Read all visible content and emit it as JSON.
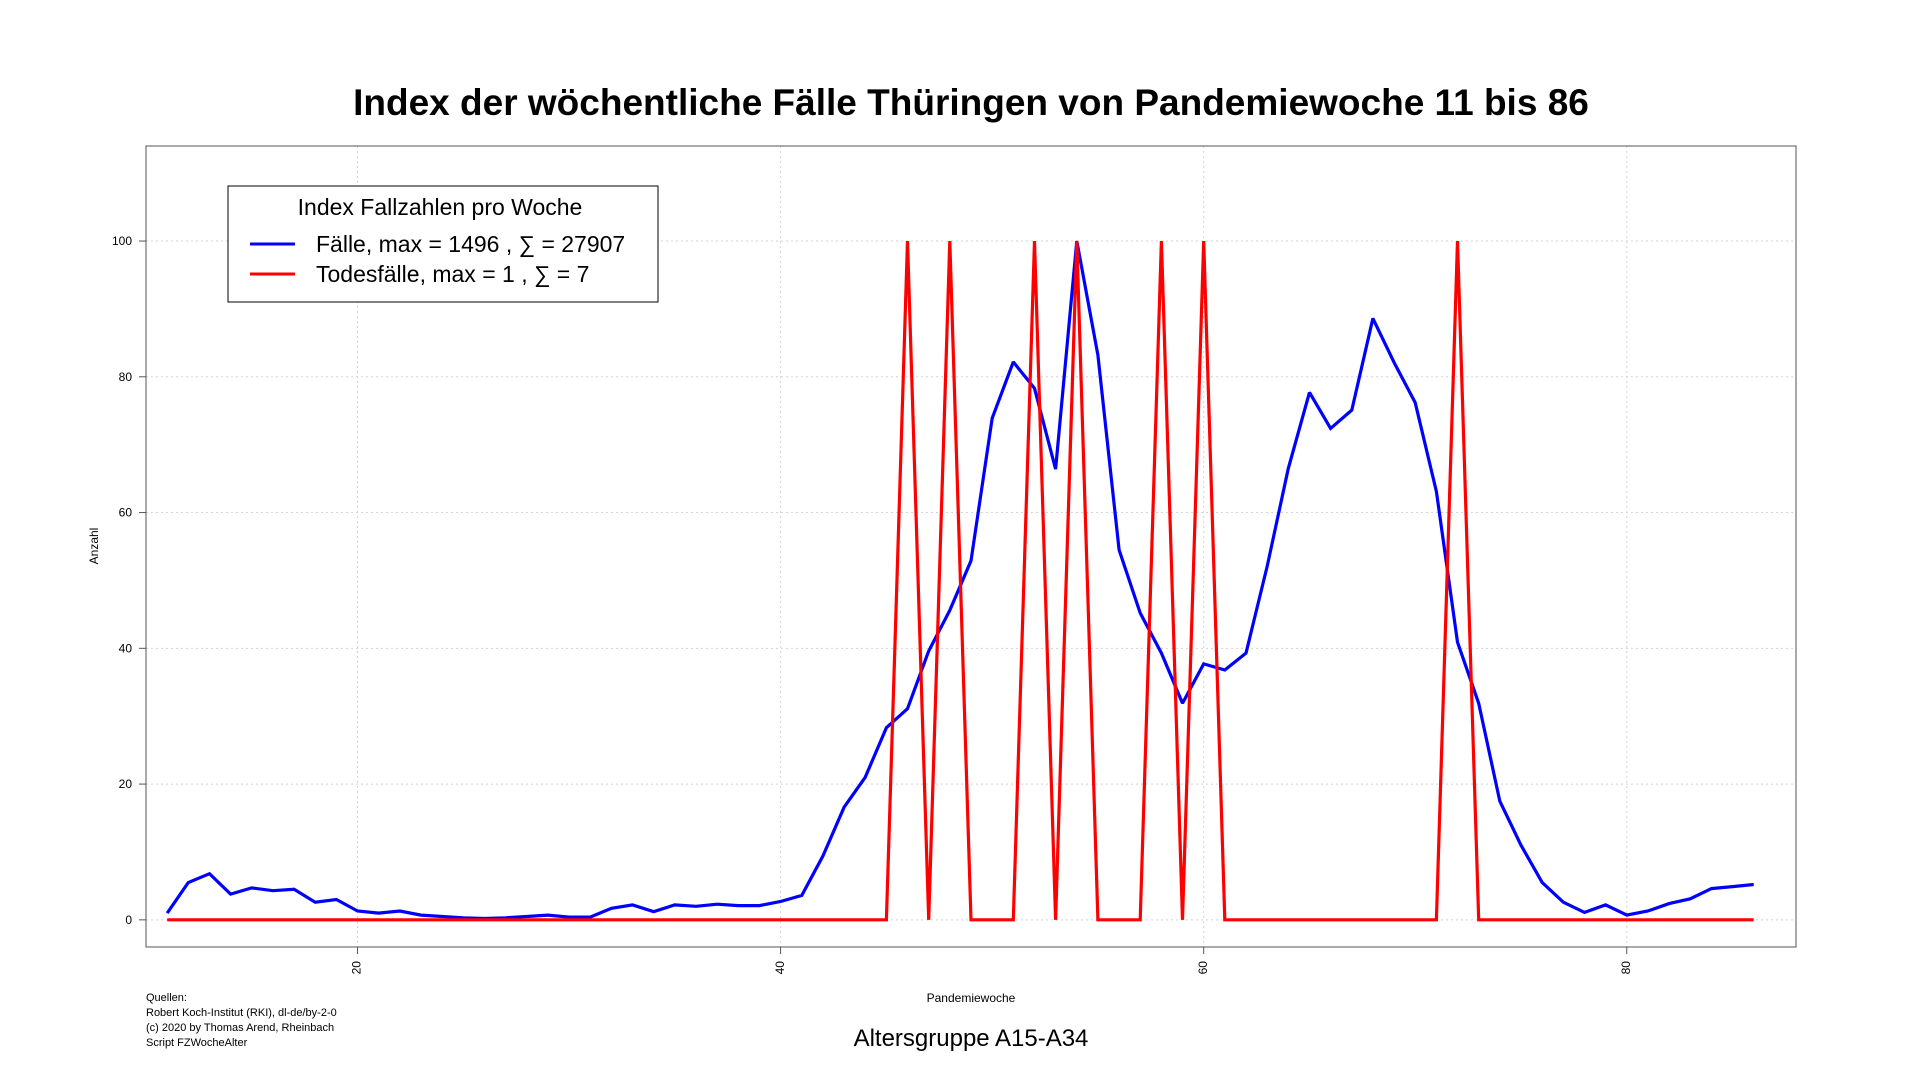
{
  "chart_data": {
    "type": "line",
    "title": "Index der wöchentliche Fälle Thüringen von Pandemiewoche 11 bis 86",
    "xlabel": "Pandemiewoche",
    "ylabel": "Anzahl",
    "subtitle": "Altersgruppe A15-A34",
    "xlim": [
      10,
      88
    ],
    "ylim": [
      -4,
      114
    ],
    "xticks": [
      20,
      40,
      60,
      80
    ],
    "yticks": [
      0,
      20,
      40,
      60,
      80,
      100
    ],
    "grid": true,
    "legend": {
      "title": "Index Fallzahlen pro Woche",
      "position": "top-left",
      "entries": [
        {
          "pre": "Fälle, max = 1496 ,",
          "sym": "∑",
          "post": "= 27907"
        },
        {
          "pre": "Todesfälle, max = 1 ,",
          "sym": "∑",
          "post": "= 7"
        }
      ]
    },
    "x": [
      11,
      12,
      13,
      14,
      15,
      16,
      17,
      18,
      19,
      20,
      21,
      22,
      23,
      24,
      25,
      26,
      27,
      28,
      29,
      30,
      31,
      32,
      33,
      34,
      35,
      36,
      37,
      38,
      39,
      40,
      41,
      42,
      43,
      44,
      45,
      46,
      47,
      48,
      49,
      50,
      51,
      52,
      53,
      54,
      55,
      56,
      57,
      58,
      59,
      60,
      61,
      62,
      63,
      64,
      65,
      66,
      67,
      68,
      69,
      70,
      71,
      72,
      73,
      74,
      75,
      76,
      77,
      78,
      79,
      80,
      81,
      82,
      83,
      84,
      85,
      86
    ],
    "series": [
      {
        "name": "Fälle, max = 1496 , ∑ = 27907",
        "color": "#0000ff",
        "values": [
          1.0,
          5.5,
          6.8,
          3.8,
          4.7,
          4.3,
          4.5,
          2.6,
          3.0,
          1.3,
          1.0,
          1.3,
          0.7,
          0.5,
          0.3,
          0.2,
          0.3,
          0.5,
          0.7,
          0.4,
          0.4,
          1.7,
          2.2,
          1.2,
          2.2,
          2.0,
          2.3,
          2.1,
          2.1,
          2.7,
          3.6,
          9.4,
          16.6,
          21.0,
          28.3,
          31.1,
          39.6,
          45.6,
          52.9,
          73.9,
          82.2,
          78.3,
          66.4,
          100,
          83.2,
          54.5,
          45.2,
          39.3,
          31.9,
          37.7,
          36.8,
          39.3,
          52.1,
          66.5,
          77.7,
          72.4,
          75.1,
          88.6,
          82.1,
          76.2,
          63.1,
          40.9,
          31.9,
          17.5,
          11.0,
          5.5,
          2.6,
          1.1,
          2.2,
          0.7,
          1.3,
          2.4,
          3.1,
          4.6,
          4.9,
          5.2
        ]
      },
      {
        "name": "Todesfälle, max = 1 , ∑ = 7",
        "color": "#ff0000",
        "values": [
          0,
          0,
          0,
          0,
          0,
          0,
          0,
          0,
          0,
          0,
          0,
          0,
          0,
          0,
          0,
          0,
          0,
          0,
          0,
          0,
          0,
          0,
          0,
          0,
          0,
          0,
          0,
          0,
          0,
          0,
          0,
          0,
          0,
          0,
          0,
          100,
          0,
          100,
          0,
          0,
          0,
          100,
          0,
          100,
          0,
          0,
          0,
          100,
          0,
          100,
          0,
          0,
          0,
          0,
          0,
          0,
          0,
          0,
          0,
          0,
          0,
          100,
          0,
          0,
          0,
          0,
          0,
          0,
          0,
          0,
          0,
          0,
          0,
          0,
          0,
          0
        ]
      }
    ]
  },
  "sources": {
    "lines": [
      "Quellen:",
      "Robert Koch-Institut (RKI), dl-de/by-2-0",
      "(c) 2020 by Thomas Arend, Rheinbach",
      "Script FZWocheAlter"
    ]
  }
}
